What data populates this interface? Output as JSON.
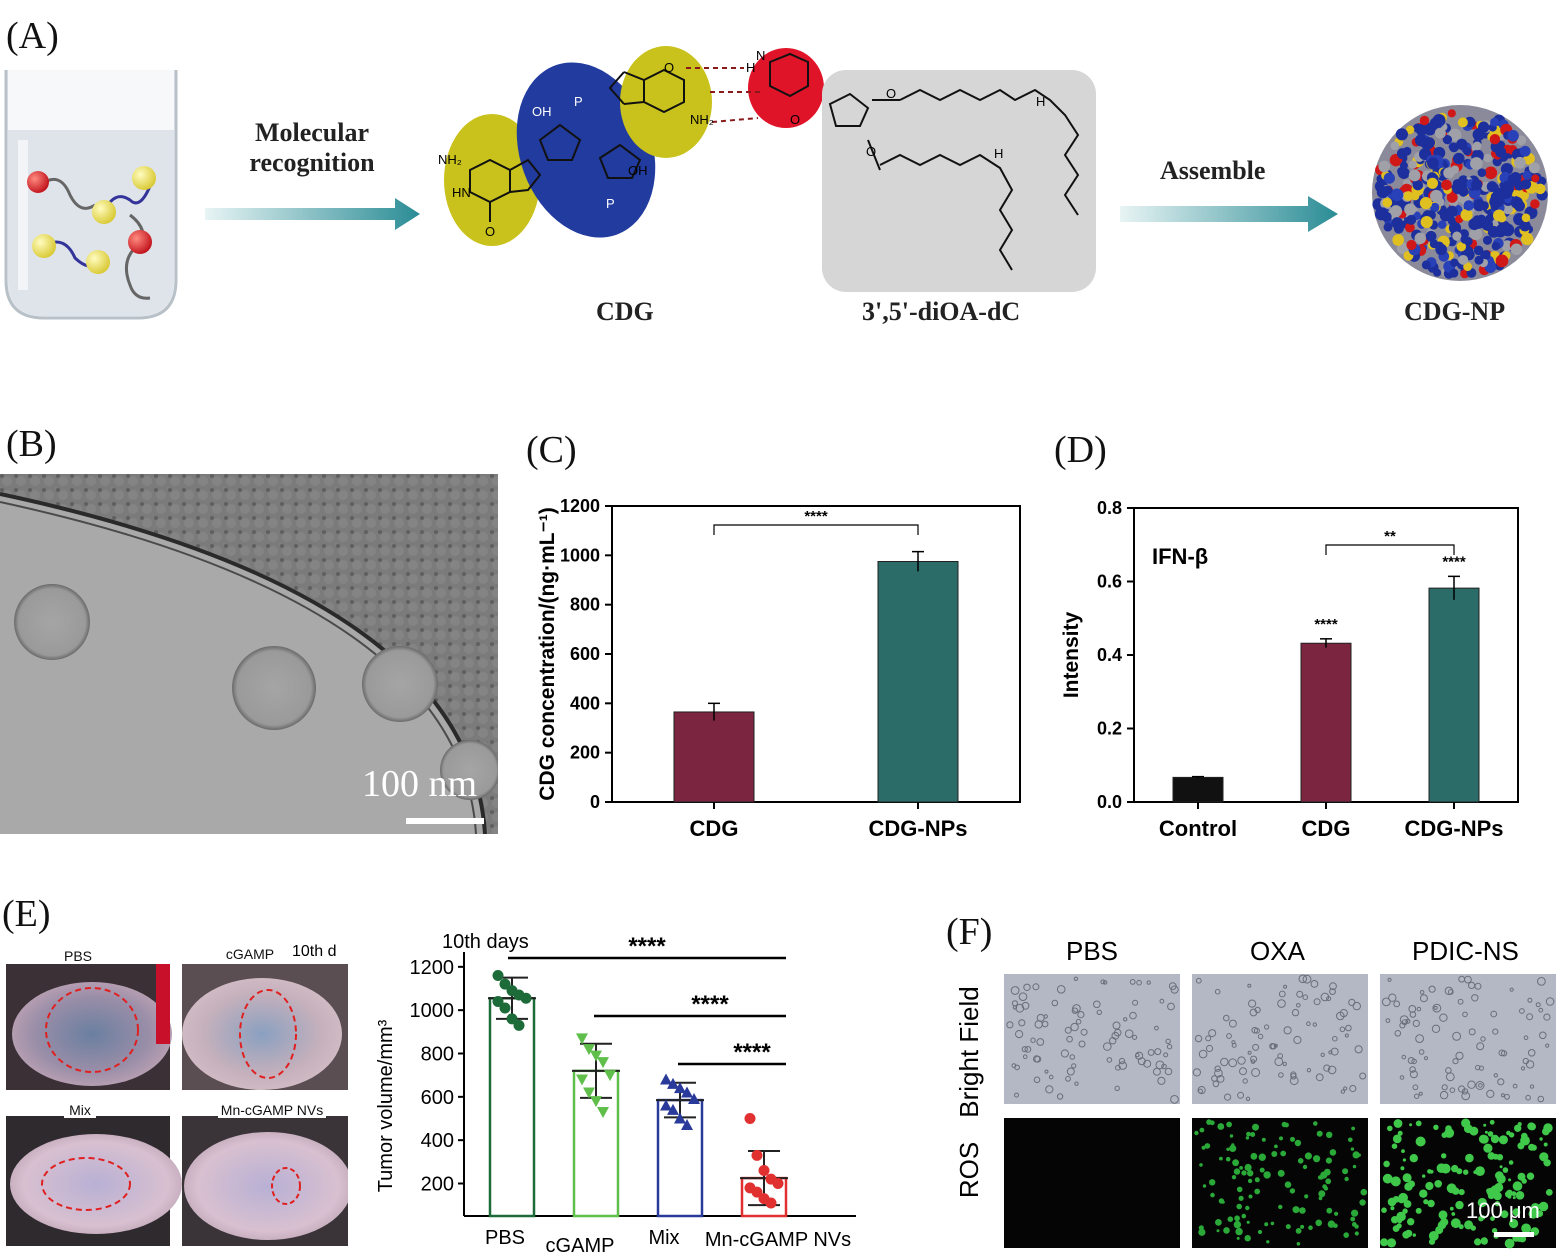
{
  "panels": {
    "a": {
      "label": "(A)",
      "arrow1_text_line1": "Molecular",
      "arrow1_text_line2": "recognition",
      "arrow2_text": "Assemble",
      "cdg_label": "CDG",
      "dioa_label": "3',5'-diOA-dC",
      "np_label": "CDG-NP",
      "atoms": {
        "nh2": "NH₂",
        "o": "O",
        "oh": "OH",
        "hn": "HN",
        "n": "N",
        "h": "H",
        "p": "P"
      }
    },
    "b": {
      "label": "(B)",
      "scale_text": "100 nm"
    },
    "c": {
      "label": "(C)"
    },
    "d": {
      "label": "(D)"
    },
    "e": {
      "label": "(E)",
      "photo_labels": [
        "PBS",
        "cGAMP",
        "10th d",
        "Mix",
        "Mn-cGAMP NVs"
      ]
    },
    "f": {
      "label": "(F)",
      "columns": [
        "PBS",
        "OXA",
        "PDIC-NS"
      ],
      "rows": [
        "Bright Field",
        "ROS"
      ],
      "scale_text": "100 μm"
    }
  },
  "chart_data": [
    {
      "type": "bar",
      "panel": "C",
      "categories": [
        "CDG",
        "CDG-NPs"
      ],
      "values": [
        365,
        975
      ],
      "errors": [
        35,
        40
      ],
      "ylabel": "CDG concentration/(ng·mL⁻¹)",
      "ylim": [
        0,
        1200
      ],
      "yticks": [
        0,
        200,
        400,
        600,
        800,
        1000,
        1200
      ],
      "colors": [
        "#7b2540",
        "#2b6b68"
      ],
      "significance": [
        {
          "from": 0,
          "to": 1,
          "text": "****"
        }
      ]
    },
    {
      "type": "bar",
      "panel": "D",
      "categories": [
        "Control",
        "CDG",
        "CDG-NPs"
      ],
      "values": [
        0.067,
        0.432,
        0.582
      ],
      "errors": [
        0.002,
        0.012,
        0.032
      ],
      "ylabel": "Intensity",
      "annotation": "IFN-β",
      "ylim": [
        0,
        0.8
      ],
      "yticks": [
        0.0,
        0.2,
        0.4,
        0.6,
        0.8
      ],
      "colors": [
        "#111111",
        "#7b2540",
        "#2b6b68"
      ],
      "bar_stars": [
        "",
        "****",
        "****"
      ],
      "significance": [
        {
          "from": 1,
          "to": 2,
          "text": "**"
        }
      ]
    },
    {
      "type": "scatter",
      "panel": "E",
      "title": "10th days",
      "categories": [
        "PBS",
        "cGAMP",
        "Mix",
        "Mn-cGAMP NVs"
      ],
      "means": [
        1055,
        720,
        585,
        225
      ],
      "errors": [
        95,
        125,
        80,
        125
      ],
      "points": [
        [
          1160,
          1120,
          1090,
          1070,
          1055,
          1040,
          1010,
          960,
          930
        ],
        [
          870,
          820,
          790,
          760,
          700,
          680,
          620,
          580,
          530
        ],
        [
          680,
          660,
          640,
          620,
          590,
          560,
          540,
          500,
          470
        ],
        [
          500,
          330,
          260,
          220,
          200,
          180,
          160,
          130,
          110
        ]
      ],
      "markers": [
        "circle",
        "triangle-down",
        "triangle-up",
        "circle"
      ],
      "colors": [
        "#1e6b3a",
        "#5fbf4a",
        "#2a3a9a",
        "#e03030"
      ],
      "ylabel": "Tumor volume/mm³",
      "ylim": [
        50,
        1250
      ],
      "yticks": [
        200,
        400,
        600,
        800,
        1000,
        1200
      ],
      "significance": [
        {
          "from": 0,
          "to": 3,
          "text": "****"
        },
        {
          "from": 1,
          "to": 3,
          "text": "****"
        },
        {
          "from": 2,
          "to": 3,
          "text": "****"
        }
      ]
    }
  ]
}
